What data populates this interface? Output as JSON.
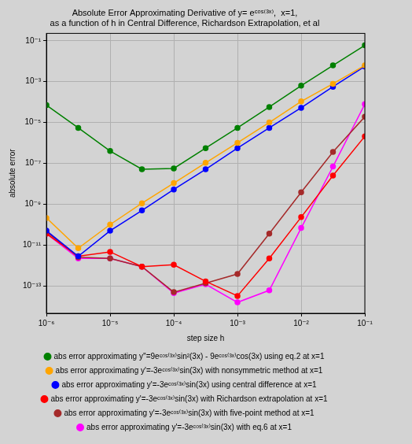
{
  "chart_data": {
    "type": "line",
    "title": [
      "Absolute Error Approximating Derivative of y= eᶜᵒˢ⁽³ˣ⁾,  x=1,",
      "as a function of h in Central Difference, Richardson Extrapolation, et al"
    ],
    "x_label": "step size h",
    "y_label": "absolute error",
    "log": true,
    "grid": true,
    "legend": "bottom",
    "marker": "circle",
    "line_style": "solid",
    "xlim": [
      1e-06,
      0.1
    ],
    "xticks": [
      {
        "value": 1e-06,
        "label": "10⁻⁶"
      },
      {
        "value": 1e-05,
        "label": "10⁻⁵"
      },
      {
        "value": 0.0001,
        "label": "10⁻⁴"
      },
      {
        "value": 0.001,
        "label": "10⁻³"
      },
      {
        "value": 0.01,
        "label": "10⁻²"
      },
      {
        "value": 0.1,
        "label": "10⁻¹"
      }
    ],
    "ylim": [
      4.5e-15,
      0.23
    ],
    "yticks": [
      {
        "value": 1e-13,
        "label": "10⁻¹³"
      },
      {
        "value": 1e-11,
        "label": "10⁻¹¹"
      },
      {
        "value": 1e-09,
        "label": "10⁻⁹"
      },
      {
        "value": 1e-07,
        "label": "10⁻⁷"
      },
      {
        "value": 1e-05,
        "label": "10⁻⁵"
      },
      {
        "value": 0.001,
        "label": "10⁻³"
      },
      {
        "value": 0.1,
        "label": "10⁻¹"
      }
    ],
    "x": [
      1e-06,
      3.16e-06,
      1e-05,
      3.16e-05,
      0.0001,
      0.000316,
      0.001,
      0.00316,
      0.01,
      0.0316,
      0.1
    ],
    "series": [
      {
        "name": "abs error approximating y''=9eᶜᵒˢ⁽³ˣ⁾sin²(3x) - 9eᶜᵒˢ⁽³ˣ⁾cos(3x) using eq.2 at x=1",
        "color": "#008000",
        "values": [
          7e-05,
          5.4e-06,
          4e-07,
          5.1e-08,
          5.6e-08,
          5.5e-07,
          5.4e-06,
          5.7e-05,
          0.00063,
          0.0062,
          0.06
        ]
      },
      {
        "name": "abs error approximating y'=-3eᶜᵒˢ⁽³ˣ⁾sin(3x) with nonsymmetric method at x=1",
        "color": "#ffa500",
        "values": [
          2.1e-10,
          6.9e-12,
          1e-10,
          1.1e-09,
          1.07e-08,
          1.05e-07,
          1e-06,
          1e-05,
          0.000107,
          0.00078,
          0.0062
        ]
      },
      {
        "name": "abs error approximating y'=-3eᶜᵒˢ⁽³ˣ⁾sin(3x) using central difference at x=1",
        "color": "#0000ff",
        "values": [
          5e-11,
          2.8e-12,
          5e-11,
          4.9e-10,
          5.2e-09,
          5.1e-08,
          5.5e-07,
          5.4e-06,
          5.2e-05,
          0.00056,
          0.0055
        ]
      },
      {
        "name": "abs error approximating y'=-3eᶜᵒˢ⁽³ˣ⁾sin(3x) with Richardson extrapolation at x=1",
        "color": "#ff0000",
        "values": [
          3.6e-11,
          2.8e-12,
          4.6e-12,
          8.7e-13,
          1.07e-12,
          1.65e-13,
          3.2e-14,
          2.2e-12,
          2.3e-10,
          2.5e-08,
          2.1e-06
        ]
      },
      {
        "name": "abs error approximating y'=-3eᶜᵒˢ⁽³ˣ⁾sin(3x) with five-point method at x=1",
        "color": "#a52a2a",
        "values": [
          4.5e-11,
          2.5e-12,
          2.2e-12,
          8.7e-13,
          4.9e-14,
          1.35e-13,
          3.8e-13,
          3.6e-11,
          3.8e-09,
          3.6e-07,
          1.9e-05
        ]
      },
      {
        "name": "abs error approximating y'=-3eᶜᵒˢ⁽³ˣ⁾sin(3x) with eq.6 at x=1",
        "color": "#ff00ff",
        "values": [
          3.6e-11,
          2.2e-12,
          2.2e-12,
          8.7e-13,
          4.4e-14,
          1.2e-13,
          1.55e-14,
          6e-14,
          6.8e-11,
          6.9e-08,
          7.9e-05
        ]
      }
    ]
  }
}
